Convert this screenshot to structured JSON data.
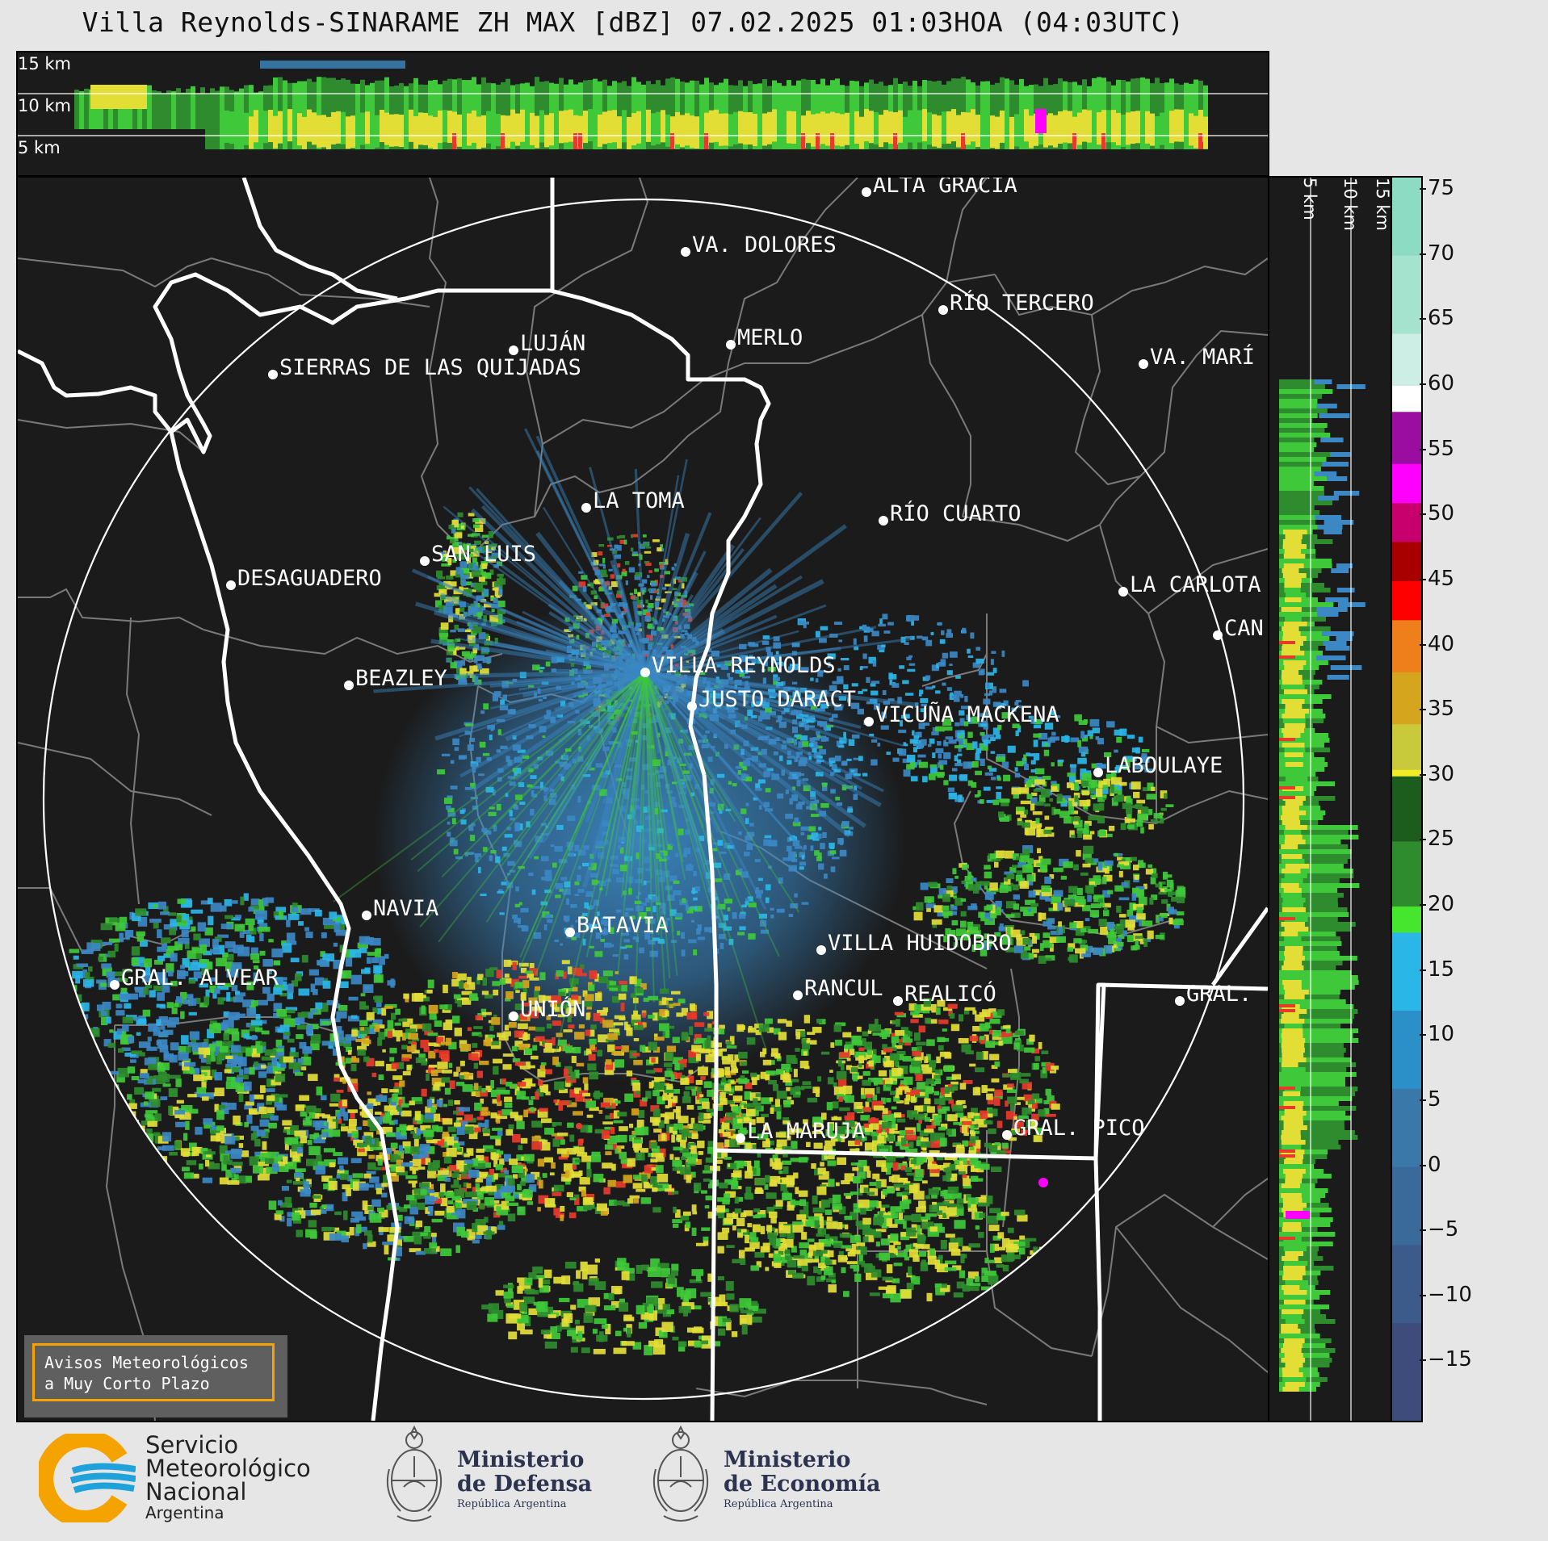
{
  "title": "Villa Reynolds-SINARAME ZH MAX [dBZ] 07.02.2025 01:03HOA (04:03UTC)",
  "top_panel_heights": [
    "15 km",
    "10 km",
    "5 km"
  ],
  "side_panel_heights": [
    "5 km",
    "10 km",
    "15 km"
  ],
  "colorbar": {
    "ticks": [
      "75",
      "70",
      "65",
      "60",
      "55",
      "50",
      "45",
      "40",
      "35",
      "30",
      "25",
      "20",
      "15",
      "10",
      "5",
      "0",
      "−5",
      "−10",
      "−15"
    ],
    "stops": [
      {
        "value": 76,
        "color": "#8edbc3"
      },
      {
        "value": 70,
        "color": "#a6e3cf"
      },
      {
        "value": 64,
        "color": "#cdeee4"
      },
      {
        "value": 60,
        "color": "#ffffff"
      },
      {
        "value": 58,
        "color": "#9a0da0"
      },
      {
        "value": 54,
        "color": "#ff00ff"
      },
      {
        "value": 51,
        "color": "#c8006e"
      },
      {
        "value": 48,
        "color": "#a80000"
      },
      {
        "value": 45,
        "color": "#ff0000"
      },
      {
        "value": 42,
        "color": "#ee7f1a"
      },
      {
        "value": 38,
        "color": "#d6a51e"
      },
      {
        "value": 34,
        "color": "#c9c93c"
      },
      {
        "value": 30.5,
        "color": "#f2ea26"
      },
      {
        "value": 30,
        "color": "#1c5c1c"
      },
      {
        "value": 25,
        "color": "#2e8c2e"
      },
      {
        "value": 20,
        "color": "#46e62e"
      },
      {
        "value": 18,
        "color": "#2bb6e8"
      },
      {
        "value": 12,
        "color": "#2b8fc8"
      },
      {
        "value": 6,
        "color": "#3b78aa"
      },
      {
        "value": 0,
        "color": "#3a6a9a"
      },
      {
        "value": -6,
        "color": "#3c5a8a"
      },
      {
        "value": -12,
        "color": "#3e4c7c"
      },
      {
        "value": -19.5,
        "color": "#3a3f6a"
      }
    ]
  },
  "colors": {
    "background": "#1b1b1b",
    "weak_echo": "#3b88c4",
    "moderate_echo": "#3fc93a",
    "strong_echo": "#e3de36",
    "heavy_echo": "#e83a2a",
    "extreme_echo": "#ff00ff",
    "borders": "#ffffff",
    "departments": "#7a7a7a"
  },
  "cities": [
    {
      "name": "ALTA GRACIA"
    },
    {
      "name": "VA. DOLORES"
    },
    {
      "name": "RÍO TERCERO"
    },
    {
      "name": "LUJÁN"
    },
    {
      "name": "MERLO"
    },
    {
      "name": "SIERRAS DE LAS QUIJADAS"
    },
    {
      "name": "VA. MARÍ"
    },
    {
      "name": "LA TOMA"
    },
    {
      "name": "RÍO CUARTO"
    },
    {
      "name": "SAN LUIS"
    },
    {
      "name": "DESAGUADERO"
    },
    {
      "name": "LA CARLOTA"
    },
    {
      "name": "CAN"
    },
    {
      "name": "VILLA REYNOLDS"
    },
    {
      "name": "BEAZLEY"
    },
    {
      "name": "JUSTO DARACT"
    },
    {
      "name": "VICUÑA MACKENA"
    },
    {
      "name": "LABOULAYE"
    },
    {
      "name": "NAVIA"
    },
    {
      "name": "BATAVIA"
    },
    {
      "name": "VILLA HUIDOBRO"
    },
    {
      "name": "GRAL. ALVEAR"
    },
    {
      "name": "RANCUL"
    },
    {
      "name": "REALICÓ"
    },
    {
      "name": "GRAL."
    },
    {
      "name": "UNIÓN"
    },
    {
      "name": "LA MARUJA"
    },
    {
      "name": "GRAL. PICO"
    }
  ],
  "badge": {
    "line1": "Avisos Meteorológicos",
    "line2": "a Muy Corto Plazo"
  },
  "logos": {
    "smn_line1": "Servicio",
    "smn_line2": "Meteorológico",
    "smn_line3": "Nacional",
    "smn_line4": "Argentina",
    "defensa_line1": "Ministerio",
    "defensa_line2": "de Defensa",
    "defensa_line3": "República Argentina",
    "economia_line1": "Ministerio",
    "economia_line2": "de Economía",
    "economia_line3": "República Argentina"
  }
}
